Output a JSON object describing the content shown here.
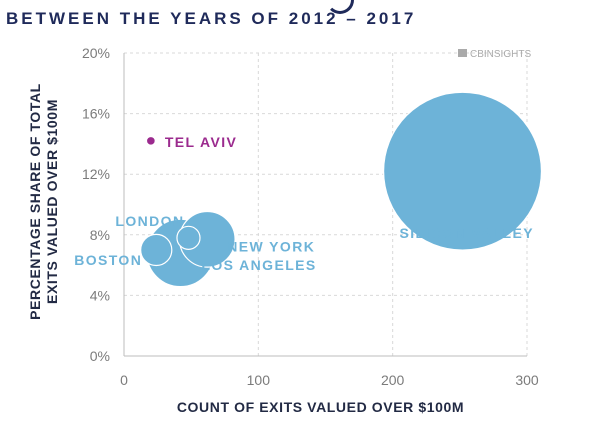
{
  "chart_data": {
    "type": "bubble",
    "title": "BETWEEN THE YEARS OF 2012 – 2017",
    "xlabel": "COUNT OF EXITS VALUED OVER $100M",
    "ylabel_line1": "PERCENTAGE SHARE OF TOTAL",
    "ylabel_line2": "EXITS VALUED OVER $100M",
    "xlim": [
      0,
      300
    ],
    "ylim": [
      0,
      20
    ],
    "x_ticks": [
      "0",
      "100",
      "200",
      "300"
    ],
    "y_ticks": [
      "0%",
      "4%",
      "8%",
      "12%",
      "16%",
      "20%"
    ],
    "grid": true,
    "watermark": "CBINSIGHTS",
    "series": [
      {
        "label": "TEL AVIV",
        "x": 20,
        "y": 14.2,
        "size": 1,
        "color": "#9b2a8e"
      },
      {
        "label": "LONDON",
        "x": 48,
        "y": 7.8,
        "size": 14,
        "color": "#6db3d8"
      },
      {
        "label": "BOSTON",
        "x": 24,
        "y": 7.0,
        "size": 28,
        "color": "#6db3d8"
      },
      {
        "label": "NEW YORK",
        "x": 62,
        "y": 7.7,
        "size": 100,
        "color": "#6db3d8"
      },
      {
        "label": "LOS ANGELES",
        "x": 42,
        "y": 6.8,
        "size": 150,
        "color": "#6db3d8"
      },
      {
        "label": "SILICON VALLEY",
        "x": 252,
        "y": 12.2,
        "size": 880,
        "color": "#6db3d8"
      }
    ]
  }
}
